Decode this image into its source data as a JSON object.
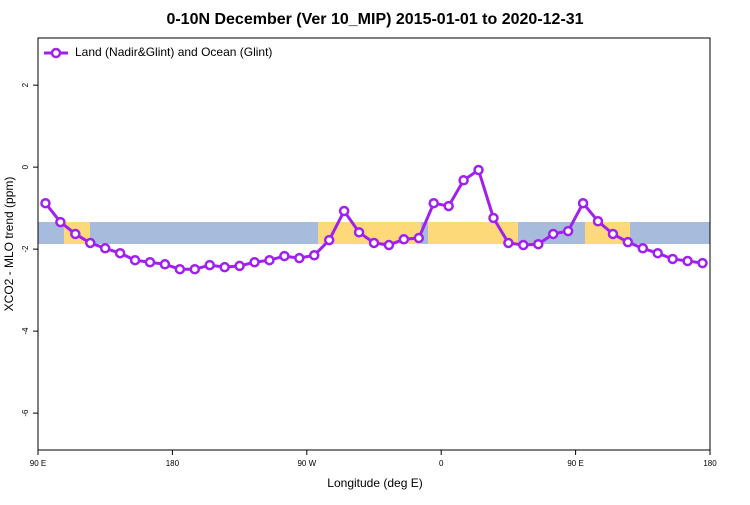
{
  "chart_data": {
    "type": "line",
    "title": "0-10N December (Ver 10_MIP)   2015-01-01 to 2020-12-31",
    "x_label": "Longitude (deg E)",
    "y_label": "XCO2 - MLO trend (ppm)",
    "x": [
      95,
      105,
      115,
      125,
      135,
      145,
      155,
      165,
      175,
      185,
      195,
      205,
      215,
      225,
      235,
      245,
      255,
      265,
      275,
      285,
      295,
      305,
      315,
      325,
      335,
      345,
      355,
      365,
      375,
      385,
      395,
      405,
      415,
      425,
      435,
      445,
      455,
      465,
      475,
      485,
      495,
      505,
      515,
      525,
      535
    ],
    "series": [
      {
        "name": "Land (Nadir&Glint) and Ocean (Glint)",
        "color": "#a020f0",
        "values": [
          -0.88,
          -1.34,
          -1.63,
          -1.85,
          -1.98,
          -2.1,
          -2.27,
          -2.32,
          -2.37,
          -2.49,
          -2.49,
          -2.39,
          -2.44,
          -2.41,
          -2.32,
          -2.27,
          -2.17,
          -2.22,
          -2.15,
          -1.78,
          -1.07,
          -1.59,
          -1.85,
          -1.9,
          -1.76,
          -1.73,
          -0.88,
          -0.95,
          -0.32,
          -0.07,
          -1.24,
          -1.85,
          -1.9,
          -1.88,
          -1.63,
          -1.56,
          -0.88,
          -1.32,
          -1.63,
          -1.83,
          -1.98,
          -2.1,
          -2.24,
          -2.29,
          -2.34
        ]
      }
    ],
    "xlim": [
      90,
      540
    ],
    "xticks": [
      {
        "value": 90,
        "label": "90 E"
      },
      180,
      {
        "value": 270,
        "label": "90 W"
      },
      {
        "value": 360,
        "label": "0"
      },
      {
        "value": 450,
        "label": "90 E"
      },
      {
        "value": 540,
        "label": "180"
      }
    ],
    "ylim": [
      -6.9,
      3.15
    ],
    "yticks": [
      -6,
      -4,
      -2,
      0,
      2
    ],
    "legend": "top-left"
  }
}
